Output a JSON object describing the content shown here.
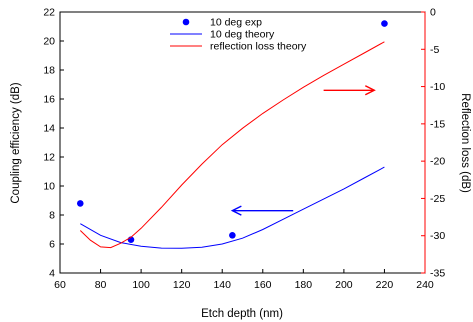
{
  "chart_data": {
    "type": "scatter",
    "x_axis": {
      "label": "Etch depth (nm)",
      "range": [
        60,
        240
      ],
      "ticks": [
        60,
        80,
        100,
        120,
        140,
        160,
        180,
        200,
        220,
        240
      ]
    },
    "y_axis_left": {
      "label": "Coupling efficiency (dB)",
      "range": [
        4,
        22
      ],
      "ticks": [
        4,
        6,
        8,
        10,
        12,
        14,
        16,
        18,
        20,
        22
      ],
      "color": "#000000"
    },
    "y_axis_right": {
      "label": "Reflection loss (dB)",
      "range": [
        -35,
        0
      ],
      "ticks": [
        -35,
        -30,
        -25,
        -20,
        -15,
        -10,
        -5,
        0
      ],
      "color": "#ff0000"
    },
    "series": [
      {
        "name": "10 deg exp",
        "kind": "markers",
        "axis": "left",
        "color": "#0000ff",
        "points": [
          [
            70,
            8.8
          ],
          [
            95,
            6.3
          ],
          [
            145,
            6.6
          ],
          [
            220,
            21.2
          ]
        ]
      },
      {
        "name": "10 deg theory",
        "kind": "line",
        "axis": "left",
        "color": "#0000ff",
        "points": [
          [
            70,
            7.4
          ],
          [
            80,
            6.6
          ],
          [
            90,
            6.1
          ],
          [
            100,
            5.85
          ],
          [
            110,
            5.72
          ],
          [
            120,
            5.7
          ],
          [
            130,
            5.78
          ],
          [
            140,
            6.0
          ],
          [
            150,
            6.4
          ],
          [
            160,
            7.0
          ],
          [
            170,
            7.7
          ],
          [
            180,
            8.4
          ],
          [
            190,
            9.1
          ],
          [
            200,
            9.8
          ],
          [
            210,
            10.55
          ],
          [
            220,
            11.3
          ]
        ]
      },
      {
        "name": "reflection loss theory",
        "kind": "line",
        "axis": "right",
        "color": "#ff0000",
        "points": [
          [
            70,
            -29.3
          ],
          [
            75,
            -30.6
          ],
          [
            80,
            -31.5
          ],
          [
            85,
            -31.6
          ],
          [
            90,
            -31.0
          ],
          [
            95,
            -30.2
          ],
          [
            100,
            -29.0
          ],
          [
            110,
            -26.2
          ],
          [
            120,
            -23.2
          ],
          [
            130,
            -20.4
          ],
          [
            140,
            -17.8
          ],
          [
            150,
            -15.6
          ],
          [
            160,
            -13.6
          ],
          [
            170,
            -11.8
          ],
          [
            180,
            -10.1
          ],
          [
            190,
            -8.5
          ],
          [
            200,
            -7.0
          ],
          [
            210,
            -5.5
          ],
          [
            220,
            -4.0
          ]
        ]
      }
    ],
    "annotations": [
      {
        "kind": "arrow",
        "direction": "left",
        "color": "#0000ff",
        "axis": "left",
        "from": [
          175,
          8.3
        ],
        "to": [
          145,
          8.3
        ]
      },
      {
        "kind": "arrow",
        "direction": "right",
        "color": "#ff0000",
        "axis": "right",
        "from": [
          190,
          -10.5
        ],
        "to": [
          215,
          -10.5
        ]
      }
    ],
    "legend": {
      "placement": "top-center"
    },
    "grid": false
  }
}
